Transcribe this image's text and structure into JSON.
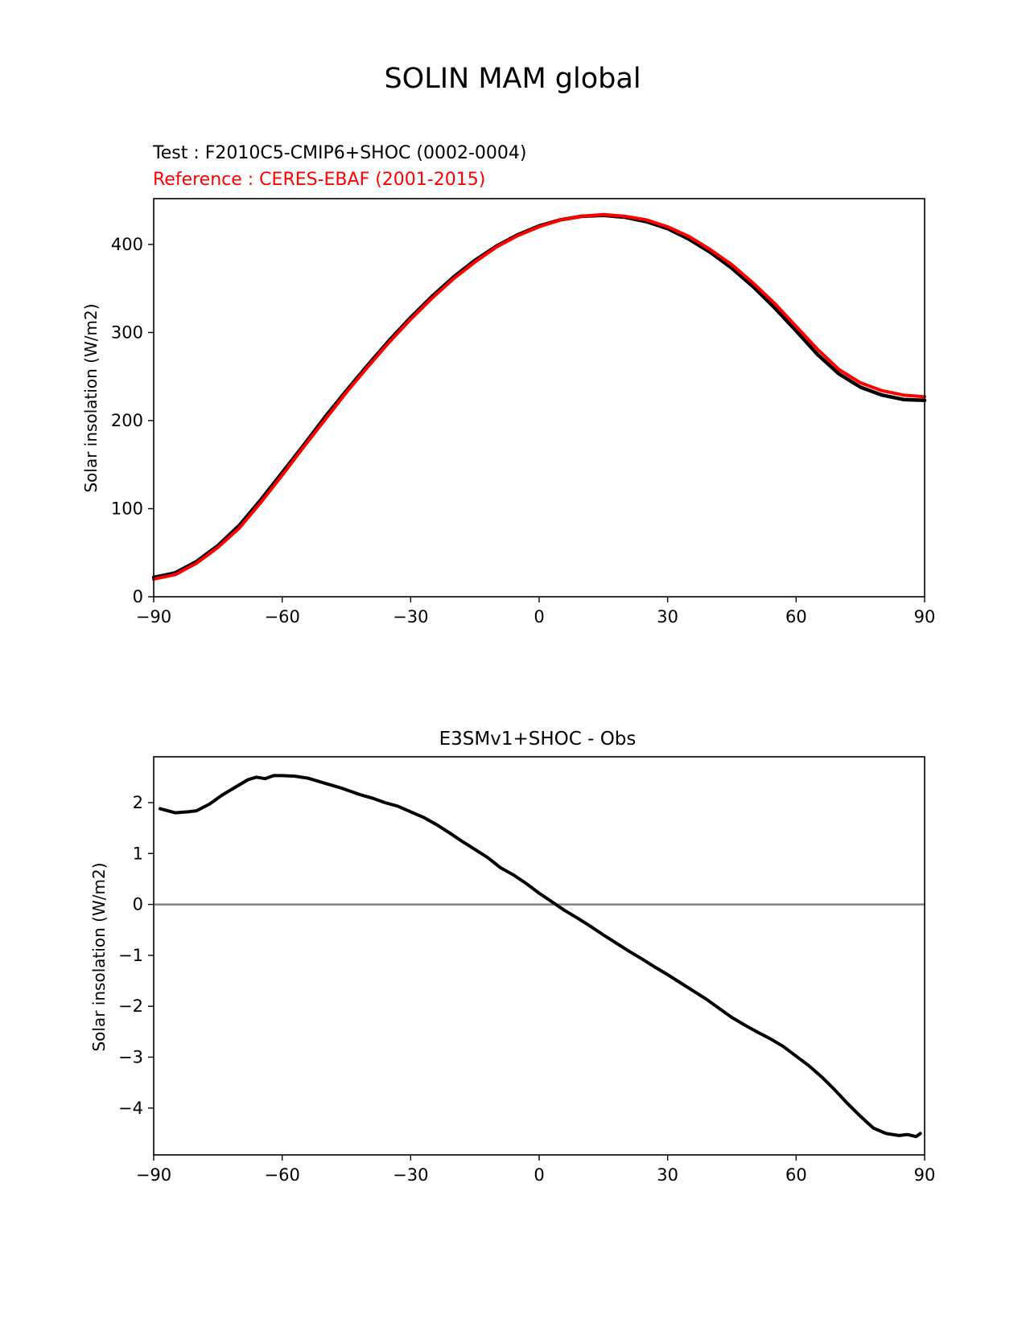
{
  "figure": {
    "title": "SOLIN MAM global"
  },
  "chart_data": [
    {
      "type": "line",
      "test_label": "Test : F2010C5-CMIP6+SHOC (0002-0004)",
      "reference_label": "Reference : CERES-EBAF (2001-2015)",
      "ylabel": "Solar insolation (W/m2)",
      "xlabel": "",
      "xlim": [
        -90,
        90
      ],
      "ylim": [
        0,
        452
      ],
      "xticks": [
        -90,
        -60,
        -30,
        0,
        30,
        60,
        90
      ],
      "xtick_labels": [
        "−90",
        "−60",
        "−30",
        "0",
        "30",
        "60",
        "90"
      ],
      "yticks": [
        0,
        100,
        200,
        300,
        400
      ],
      "ytick_labels": [
        "0",
        "100",
        "200",
        "300",
        "400"
      ],
      "grid": false,
      "colors": {
        "test": "#000000",
        "reference": "#ff0000"
      },
      "series": [
        {
          "key": "test",
          "x": [
            -90,
            -85,
            -80,
            -75,
            -70,
            -65,
            -60,
            -55,
            -50,
            -45,
            -40,
            -35,
            -30,
            -25,
            -20,
            -15,
            -10,
            -5,
            0,
            5,
            10,
            15,
            20,
            25,
            30,
            35,
            40,
            45,
            50,
            55,
            60,
            65,
            70,
            75,
            80,
            85,
            90
          ],
          "y": [
            22,
            27,
            40,
            58,
            81,
            110,
            141,
            172,
            204,
            234,
            263,
            291,
            317,
            341,
            363,
            382,
            398,
            411,
            421,
            428,
            432,
            433,
            431,
            426,
            418,
            406,
            391,
            373,
            352,
            328,
            302,
            275,
            253,
            238,
            229,
            224,
            223
          ]
        },
        {
          "key": "reference",
          "x": [
            -90,
            -85,
            -80,
            -75,
            -70,
            -65,
            -60,
            -55,
            -50,
            -45,
            -40,
            -35,
            -30,
            -25,
            -20,
            -15,
            -10,
            -5,
            0,
            5,
            10,
            15,
            20,
            25,
            30,
            35,
            40,
            45,
            50,
            55,
            60,
            65,
            70,
            75,
            80,
            85,
            90
          ],
          "y": [
            20,
            25,
            38,
            56,
            78,
            107,
            138,
            170,
            201,
            232,
            261,
            289,
            315,
            339,
            361,
            380,
            397,
            410,
            420,
            428,
            432,
            434,
            432,
            428,
            420,
            409,
            394,
            377,
            356,
            333,
            307,
            281,
            258,
            243,
            234,
            229,
            227
          ]
        }
      ]
    },
    {
      "type": "line",
      "title": "E3SMv1+SHOC - Obs",
      "ylabel": "Solar insolation (W/m2)",
      "xlabel": "",
      "xlim": [
        -90,
        90
      ],
      "ylim": [
        -4.92,
        2.9
      ],
      "xticks": [
        -90,
        -60,
        -30,
        0,
        30,
        60,
        90
      ],
      "xtick_labels": [
        "−90",
        "−60",
        "−30",
        "0",
        "30",
        "60",
        "90"
      ],
      "yticks": [
        -4,
        -3,
        -2,
        -1,
        0,
        1,
        2
      ],
      "ytick_labels": [
        "−4",
        "−3",
        "−2",
        "−1",
        "0",
        "1",
        "2"
      ],
      "zero_line": 0,
      "grid": false,
      "colors": {
        "diff": "#000000",
        "zero_line": "#808080"
      },
      "series": [
        {
          "key": "diff",
          "x": [
            -88.5,
            -85,
            -82,
            -80,
            -77,
            -74,
            -71,
            -68,
            -66,
            -64,
            -62,
            -60,
            -57,
            -54,
            -50,
            -46,
            -42,
            -39,
            -36,
            -33,
            -30,
            -27,
            -24,
            -21,
            -18,
            -15,
            -12,
            -9,
            -6,
            -3,
            0,
            3,
            6,
            9,
            12,
            15,
            18,
            21,
            24,
            27,
            30,
            33,
            36,
            39,
            42,
            45,
            48,
            51,
            54,
            57,
            60,
            63,
            66,
            69,
            72,
            75,
            78,
            81,
            84,
            86,
            88,
            89
          ],
          "y": [
            1.88,
            1.8,
            1.82,
            1.84,
            1.97,
            2.15,
            2.3,
            2.45,
            2.5,
            2.47,
            2.53,
            2.53,
            2.52,
            2.48,
            2.38,
            2.28,
            2.16,
            2.09,
            2.0,
            1.93,
            1.82,
            1.71,
            1.57,
            1.41,
            1.24,
            1.08,
            0.92,
            0.72,
            0.58,
            0.41,
            0.22,
            0.05,
            -0.12,
            -0.27,
            -0.43,
            -0.6,
            -0.76,
            -0.92,
            -1.07,
            -1.23,
            -1.38,
            -1.54,
            -1.7,
            -1.86,
            -2.04,
            -2.22,
            -2.37,
            -2.51,
            -2.64,
            -2.79,
            -2.98,
            -3.17,
            -3.39,
            -3.64,
            -3.91,
            -4.16,
            -4.39,
            -4.5,
            -4.54,
            -4.52,
            -4.56,
            -4.5
          ]
        }
      ]
    }
  ]
}
